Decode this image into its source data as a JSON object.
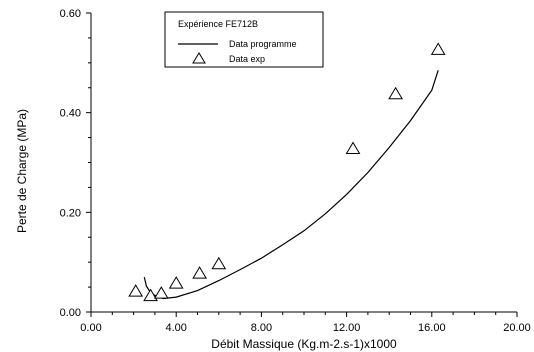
{
  "chart_data": {
    "type": "scatter",
    "xlabel": "Débit Massique (Kg.m-2.s-1)x1000",
    "ylabel": "Perte de Charge (MPa)",
    "xlim": [
      0,
      20
    ],
    "ylim": [
      0,
      0.6
    ],
    "x_ticks": [
      "0.00",
      "4.00",
      "8.00",
      "12.00",
      "16.00",
      "20.00"
    ],
    "y_ticks": [
      "0.00",
      "0.20",
      "0.40",
      "0.60"
    ],
    "legend": {
      "title": "Expérience FE712B",
      "position": "top-center",
      "entries": [
        "Data programme",
        "Data exp"
      ]
    },
    "series": [
      {
        "name": "Data exp",
        "style": "triangle-markers",
        "points": [
          [
            2.1,
            0.042
          ],
          [
            2.8,
            0.033
          ],
          [
            3.3,
            0.038
          ],
          [
            4.0,
            0.058
          ],
          [
            5.1,
            0.078
          ],
          [
            6.0,
            0.097
          ],
          [
            12.3,
            0.328
          ],
          [
            14.3,
            0.438
          ],
          [
            16.3,
            0.527
          ]
        ]
      },
      {
        "name": "Data programme",
        "style": "line",
        "points": [
          [
            2.5,
            0.07
          ],
          [
            2.6,
            0.052
          ],
          [
            2.75,
            0.042
          ],
          [
            2.9,
            0.036
          ],
          [
            3.1,
            0.031
          ],
          [
            3.4,
            0.027
          ],
          [
            4.0,
            0.03
          ],
          [
            5.0,
            0.043
          ],
          [
            6.0,
            0.063
          ],
          [
            7.0,
            0.085
          ],
          [
            8.0,
            0.108
          ],
          [
            9.0,
            0.135
          ],
          [
            10.0,
            0.163
          ],
          [
            11.0,
            0.197
          ],
          [
            12.0,
            0.236
          ],
          [
            13.0,
            0.28
          ],
          [
            14.0,
            0.33
          ],
          [
            15.0,
            0.384
          ],
          [
            16.0,
            0.445
          ],
          [
            16.3,
            0.485
          ]
        ]
      }
    ]
  }
}
